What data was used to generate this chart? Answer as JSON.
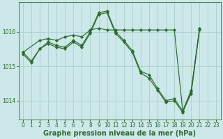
{
  "bg_color": "#cce8e8",
  "grid_color": "#a8d0d0",
  "line_color": "#2d6a2d",
  "xlim": [
    -0.5,
    23.5
  ],
  "ylim": [
    1013.45,
    1016.85
  ],
  "yticks": [
    1014,
    1015,
    1016
  ],
  "xticks": [
    0,
    1,
    2,
    3,
    4,
    5,
    6,
    7,
    8,
    9,
    10,
    11,
    12,
    13,
    14,
    15,
    16,
    17,
    18,
    19,
    20,
    21,
    22,
    23
  ],
  "line1_x": [
    0,
    1,
    2,
    3,
    4,
    5,
    6,
    7,
    8,
    9,
    10,
    11,
    12,
    13,
    14,
    15,
    16,
    17,
    18,
    19,
    20,
    21
  ],
  "line1_y": [
    1015.4,
    1015.15,
    1015.5,
    1015.7,
    1015.6,
    1015.55,
    1015.75,
    1015.6,
    1016.0,
    1016.55,
    1016.6,
    1016.0,
    1015.75,
    1015.45,
    1014.85,
    1014.75,
    1014.35,
    1014.0,
    1014.05,
    1013.7,
    1014.3,
    1016.1
  ],
  "line2_x": [
    0,
    1,
    2,
    3,
    4,
    5,
    6,
    7,
    8,
    9,
    10,
    11,
    12,
    13,
    14,
    15,
    16,
    17,
    18,
    19,
    20,
    21
  ],
  "line2_y": [
    1015.35,
    1015.1,
    1015.5,
    1015.65,
    1015.55,
    1015.5,
    1015.7,
    1015.55,
    1015.95,
    1016.5,
    1016.55,
    1015.95,
    1015.7,
    1015.4,
    1014.8,
    1014.65,
    1014.3,
    1013.95,
    1014.0,
    1013.65,
    1014.25,
    1016.05
  ],
  "line3_x": [
    0,
    2,
    3,
    4,
    5,
    6,
    7,
    8,
    9,
    10,
    11,
    12,
    13,
    14,
    15,
    16,
    17,
    18,
    19,
    20,
    21
  ],
  "line3_y": [
    1015.4,
    1015.75,
    1015.8,
    1015.75,
    1015.85,
    1015.9,
    1015.85,
    1016.05,
    1016.1,
    1016.05,
    1016.05,
    1016.05,
    1016.05,
    1016.05,
    1016.05,
    1016.05,
    1016.05,
    1016.05,
    1013.7,
    1014.2,
    1016.1
  ],
  "xlabel": "Graphe pression niveau de la mer (hPa)",
  "tick_fontsize": 5.5,
  "label_fontsize": 7,
  "spine_color": "#4a7a4a"
}
